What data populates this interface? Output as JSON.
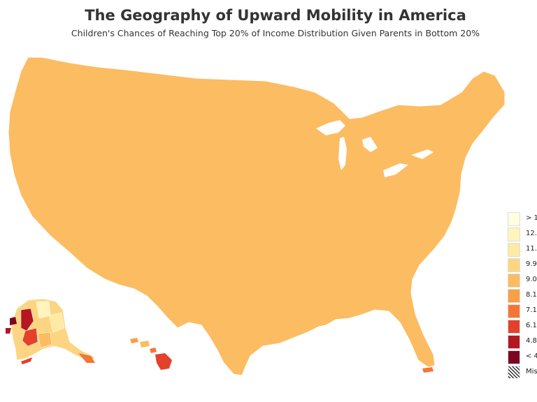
{
  "header": {
    "title": "The Geography of Upward Mobility in America",
    "subtitle": "Children's Chances of Reaching Top 20% of Income Distribution Given Parents in Bottom 20%"
  },
  "legend": {
    "items": [
      {
        "label": "> 1",
        "color": "#ffffe0"
      },
      {
        "label": "12.",
        "color": "#fff5bc"
      },
      {
        "label": "11.",
        "color": "#fee9a5"
      },
      {
        "label": "9.9",
        "color": "#fdd582"
      },
      {
        "label": "9.0",
        "color": "#fcbc61"
      },
      {
        "label": "8.1",
        "color": "#f9a046"
      },
      {
        "label": "7.1",
        "color": "#f57535"
      },
      {
        "label": "6.1",
        "color": "#e4412a"
      },
      {
        "label": "4.8",
        "color": "#b5161f"
      },
      {
        "label": "< 4",
        "color": "#7c0522"
      },
      {
        "label": "Mis",
        "color": "hatch"
      }
    ]
  },
  "palette": {
    "highest": "#ffffe0",
    "lowest": "#7c0522",
    "border": "#ffffff",
    "missing_hatch": "#333333"
  }
}
